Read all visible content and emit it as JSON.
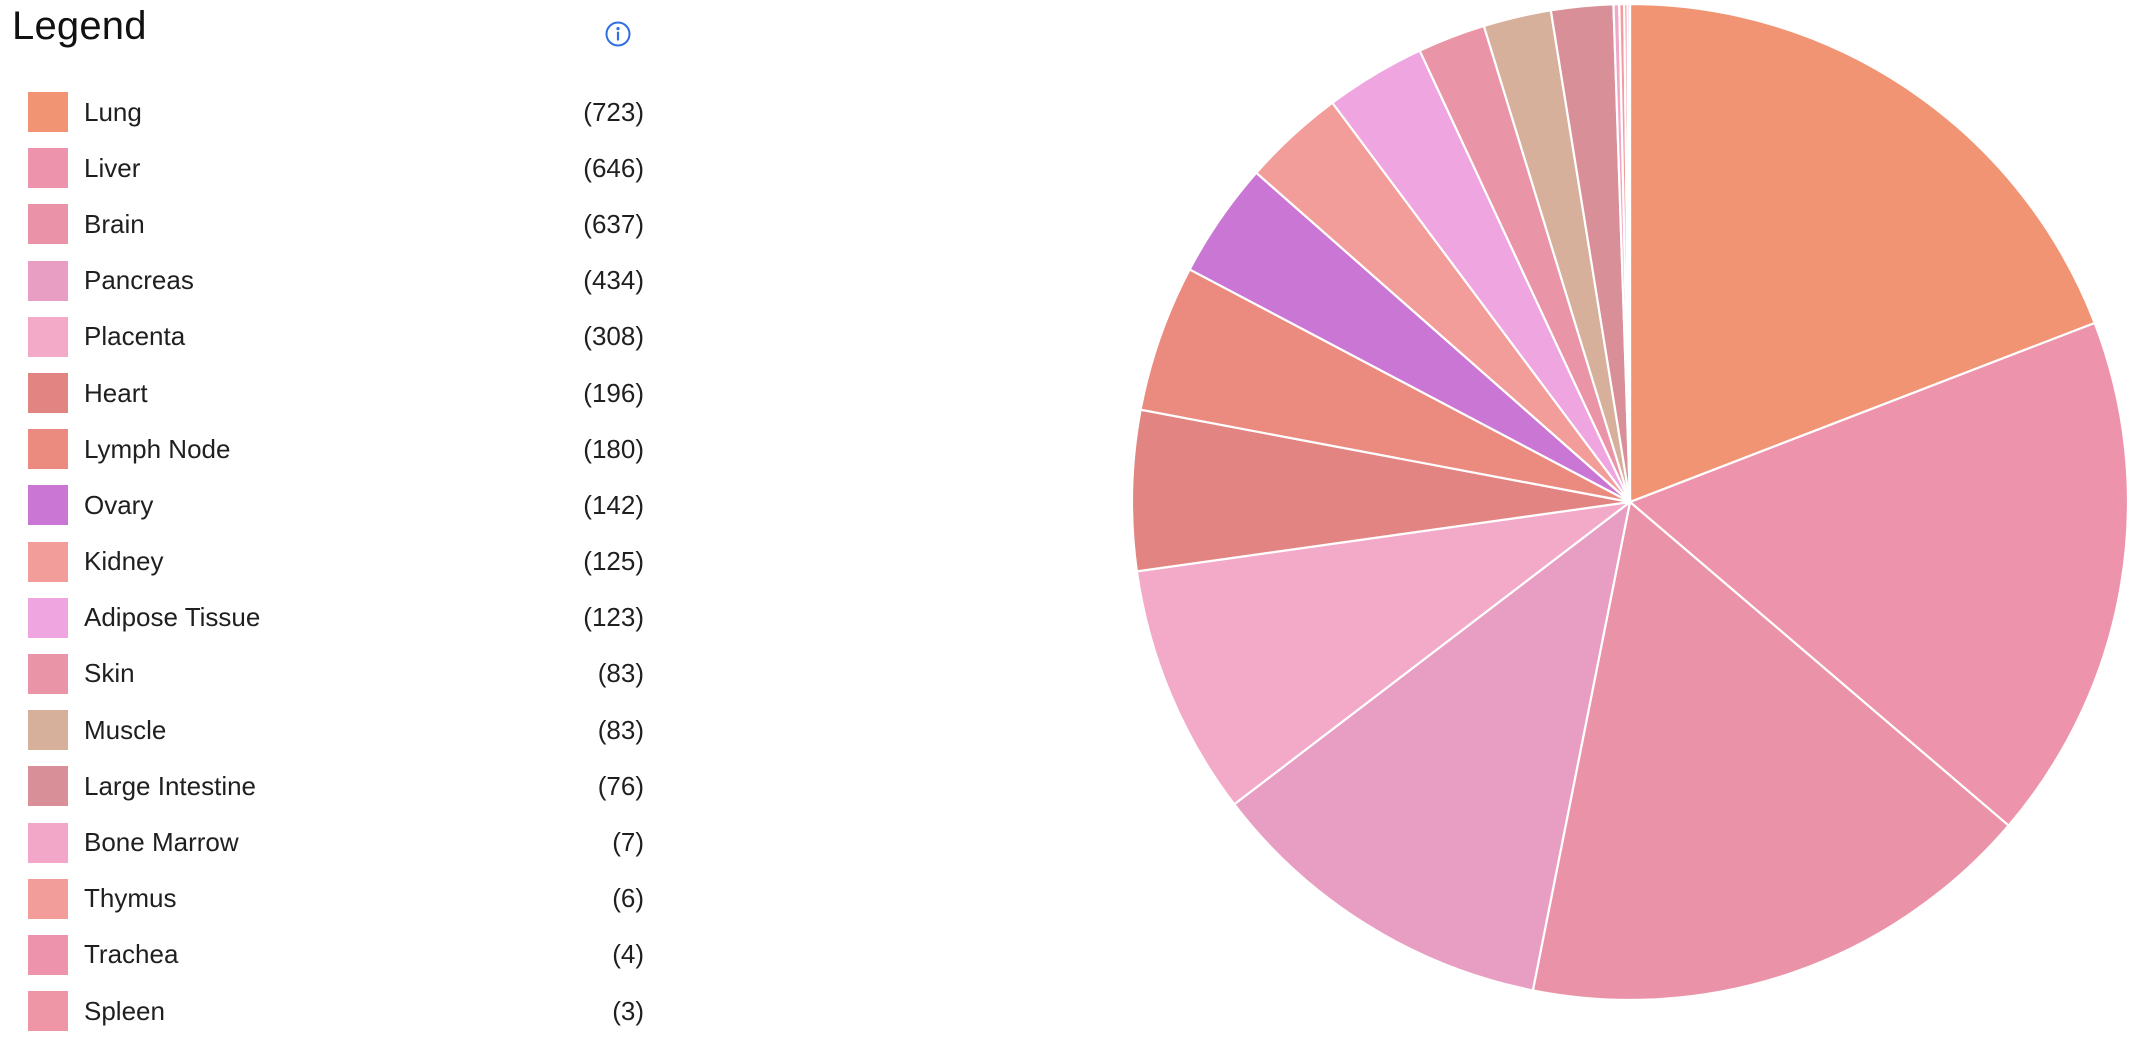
{
  "legend": {
    "title": "Legend",
    "info_icon": "info-circle-icon"
  },
  "chart_data": {
    "type": "pie",
    "categories": [
      "Lung",
      "Liver",
      "Brain",
      "Pancreas",
      "Placenta",
      "Heart",
      "Lymph Node",
      "Ovary",
      "Kidney",
      "Adipose Tissue",
      "Skin",
      "Muscle",
      "Large Intestine",
      "Bone Marrow",
      "Thymus",
      "Trachea",
      "Spleen"
    ],
    "values": [
      723,
      646,
      637,
      434,
      308,
      196,
      180,
      142,
      125,
      123,
      83,
      83,
      76,
      7,
      6,
      4,
      3
    ],
    "count_labels": [
      "(723)",
      "(646)",
      "(637)",
      "(434)",
      "(308)",
      "(196)",
      "(180)",
      "(142)",
      "(125)",
      "(123)",
      "(83)",
      "(83)",
      "(76)",
      "(7)",
      "(6)",
      "(4)",
      "(3)"
    ],
    "colors": [
      "#F09474",
      "#EE93AC",
      "#EA93A8",
      "#E89EC3",
      "#F3A9C8",
      "#E28582",
      "#EB8A7F",
      "#C976D5",
      "#F29D9A",
      "#EEA5E0",
      "#E994A7",
      "#D6B09A",
      "#D88F98",
      "#F3A7C8",
      "#F29D9A",
      "#EE93AC",
      "#EE96A6"
    ],
    "title": "",
    "legend_position": "left"
  }
}
